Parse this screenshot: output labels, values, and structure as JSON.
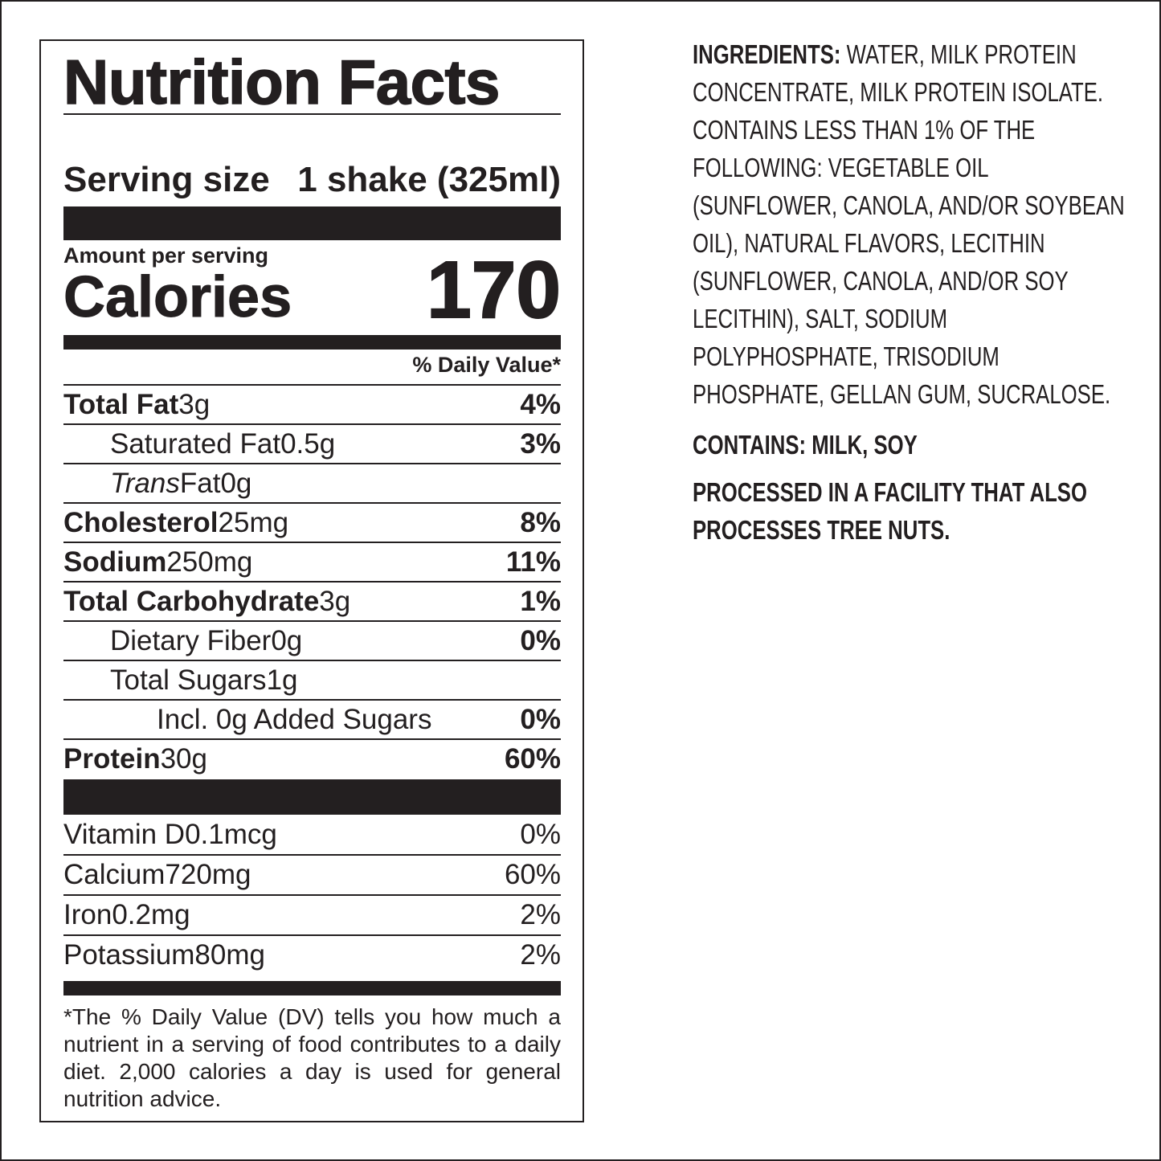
{
  "label": {
    "title": "Nutrition Facts",
    "serving_size_label": "Serving size",
    "serving_size": "1 shake (325ml)",
    "amount_per_serving": "Amount per serving",
    "calories_label": "Calories",
    "calories": 170,
    "dv_header": "% Daily Value*",
    "rows": [
      {
        "name": "Total Fat",
        "amount": "3g",
        "dv": "4%",
        "subrows": [
          {
            "name": "Saturated Fat",
            "amount": "0.5g",
            "dv": "3%"
          },
          {
            "name_italic": "Trans",
            "name": "Fat",
            "amount": "0g"
          }
        ]
      },
      {
        "name": "Cholesterol",
        "amount": "25mg",
        "dv": "8%"
      },
      {
        "name": "Sodium",
        "amount": "250mg",
        "dv": "11%"
      },
      {
        "name": "Total Carbohydrate",
        "amount": "3g",
        "dv": "1%",
        "subrows": [
          {
            "name": "Dietary Fiber",
            "amount": "0g",
            "dv": "0%"
          },
          {
            "name": "Total Sugars",
            "amount": "1g",
            "subrows": [
              {
                "name": "Incl. 0g Added Sugars",
                "dv": "0%"
              }
            ]
          }
        ]
      },
      {
        "name": "Protein",
        "amount": "30g",
        "dv": "60%"
      }
    ],
    "vitamins": [
      {
        "name": "Vitamin D",
        "amount": "0.1mcg",
        "dv": "0%"
      },
      {
        "name": "Calcium",
        "amount": "720mg",
        "dv": "60%"
      },
      {
        "name": "Iron",
        "amount": "0.2mg",
        "dv": "2%"
      },
      {
        "name": "Potassium",
        "amount": "80mg",
        "dv": "2%"
      }
    ],
    "footnote": "*The % Daily Value (DV) tells you how much a nutrient in a serving of food contributes to a daily diet. 2,000 calories a day is used for general nutrition advice."
  },
  "ingredients": {
    "label": "INGREDIENTS:",
    "text": "WATER, MILK PROTEIN CONCENTRATE, MILK PROTEIN ISOLATE. CONTAINS LESS THAN 1% OF THE FOLLOWING: VEGETABLE OIL (SUNFLOWER, CANOLA, AND/OR SOYBEAN OIL), NATURAL FLAVORS, LECITHIN (SUNFLOWER, CANOLA, AND/OR SOY LECITHIN), SALT, SODIUM POLYPHOSPHATE, TRISODIUM PHOSPHATE, GELLAN GUM, SUCRALOSE."
  },
  "contains": "CONTAINS: MILK, SOY",
  "processed": "PROCESSED IN A FACILITY THAT ALSO PROCESSES TREE NUTS."
}
